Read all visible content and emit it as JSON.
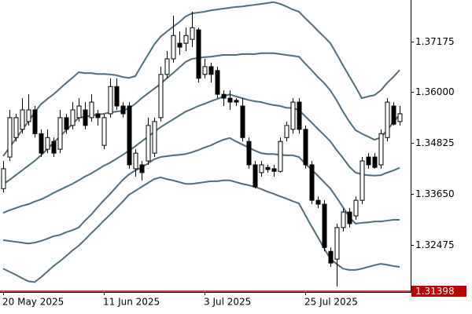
{
  "chart_data": {
    "type": "candlestick",
    "categories": [
      "20 May 2025",
      null,
      null,
      null,
      null,
      null,
      null,
      null,
      null,
      null,
      null,
      null,
      null,
      null,
      null,
      null,
      "11 Jun 2025",
      null,
      null,
      null,
      null,
      null,
      null,
      null,
      null,
      null,
      null,
      null,
      null,
      null,
      null,
      null,
      "3 Jul 2025",
      null,
      null,
      null,
      null,
      null,
      null,
      null,
      null,
      null,
      null,
      null,
      null,
      null,
      null,
      null,
      "25 Jul 2025",
      null,
      null,
      null,
      null,
      null,
      null,
      null,
      null,
      null,
      null,
      null,
      null,
      null,
      null,
      null
    ],
    "open": [
      1.3377,
      1.345,
      1.3495,
      1.3514,
      1.3532,
      1.3559,
      1.3504,
      1.3468,
      1.3486,
      1.3468,
      1.3541,
      1.3523,
      1.3541,
      1.3559,
      1.3541,
      1.355,
      1.3477,
      1.355,
      1.3613,
      1.3568,
      1.3568,
      1.3423,
      1.3432,
      1.3441,
      1.3459,
      1.3541,
      1.3641,
      1.3677,
      1.3713,
      1.3713,
      1.3722,
      1.3744,
      1.3641,
      1.3659,
      1.365,
      1.3595,
      1.3586,
      1.3581,
      1.3568,
      1.3486,
      1.3432,
      1.3414,
      1.3426,
      1.3423,
      1.3417,
      1.3495,
      1.3514,
      1.3577,
      1.3514,
      1.3432,
      1.335,
      1.3341,
      1.3232,
      1.3214,
      1.3287,
      1.3323,
      1.3314,
      1.335,
      1.345,
      1.345,
      1.3432,
      1.3495,
      1.3568,
      1.3532
    ],
    "high": [
      1.3441,
      1.3559,
      1.355,
      1.3586,
      1.3595,
      1.3568,
      1.3514,
      1.3514,
      1.3495,
      1.3559,
      1.355,
      1.3577,
      1.3586,
      1.3577,
      1.3595,
      1.3559,
      1.355,
      1.3632,
      1.3632,
      1.3577,
      1.3577,
      1.3468,
      1.3441,
      1.3541,
      1.3541,
      1.3659,
      1.3695,
      1.3777,
      1.374,
      1.3749,
      1.3786,
      1.3749,
      1.3677,
      1.3668,
      1.3659,
      1.3604,
      1.3604,
      1.3586,
      1.3586,
      1.3495,
      1.3441,
      1.3441,
      1.3432,
      1.3432,
      1.3495,
      1.3532,
      1.3586,
      1.3586,
      1.3523,
      1.3441,
      1.3359,
      1.335,
      1.3241,
      1.3296,
      1.3332,
      1.3332,
      1.3359,
      1.345,
      1.3459,
      1.3459,
      1.3514,
      1.3586,
      1.3577,
      1.3568
    ],
    "low": [
      1.3368,
      1.3441,
      1.3486,
      1.3504,
      1.3523,
      1.3495,
      1.345,
      1.3459,
      1.345,
      1.3459,
      1.3504,
      1.3514,
      1.3532,
      1.3514,
      1.3532,
      1.3523,
      1.3468,
      1.3541,
      1.3559,
      1.3541,
      1.3423,
      1.3405,
      1.3396,
      1.3432,
      1.345,
      1.3532,
      1.3632,
      1.3668,
      1.3686,
      1.3695,
      1.3704,
      1.3622,
      1.3632,
      1.3622,
      1.3586,
      1.3568,
      1.3559,
      1.3568,
      1.3486,
      1.3423,
      1.3377,
      1.3405,
      1.3414,
      1.3405,
      1.3414,
      1.3486,
      1.3504,
      1.3504,
      1.3423,
      1.3341,
      1.3332,
      1.3232,
      1.3196,
      1.3151,
      1.3278,
      1.3287,
      1.3305,
      1.3341,
      1.3423,
      1.3423,
      1.3423,
      1.3486,
      1.3523,
      1.3523
    ],
    "close": [
      1.3423,
      1.3541,
      1.3541,
      1.3559,
      1.3559,
      1.3504,
      1.3459,
      1.3495,
      1.3459,
      1.3541,
      1.3514,
      1.3559,
      1.3568,
      1.3523,
      1.3577,
      1.3541,
      1.3541,
      1.3613,
      1.3568,
      1.355,
      1.3432,
      1.3459,
      1.3414,
      1.3523,
      1.3532,
      1.3641,
      1.3677,
      1.3731,
      1.3704,
      1.3731,
      1.3749,
      1.3632,
      1.3659,
      1.3641,
      1.3595,
      1.3586,
      1.3577,
      1.3577,
      1.3495,
      1.3432,
      1.3381,
      1.3432,
      1.3421,
      1.3417,
      1.3486,
      1.3523,
      1.3577,
      1.3514,
      1.3432,
      1.335,
      1.3341,
      1.3241,
      1.3205,
      1.3287,
      1.3323,
      1.3296,
      1.335,
      1.3441,
      1.3432,
      1.3426,
      1.3504,
      1.3577,
      1.3526,
      1.355
    ],
    "up_color": "#ffffff",
    "down_color": "#000000",
    "bands": [
      {
        "color": "#4f6d7e",
        "values": [
          1.3452,
          1.3472,
          1.3492,
          1.3512,
          1.3532,
          1.3553,
          1.3572,
          1.3584,
          1.3595,
          1.3608,
          1.3621,
          1.3633,
          1.3646,
          1.3644,
          1.3644,
          1.3642,
          1.3642,
          1.3641,
          1.3639,
          1.3635,
          1.3633,
          1.3637,
          1.3662,
          1.3686,
          1.371,
          1.3728,
          1.374,
          1.3751,
          1.3762,
          1.3775,
          1.3782,
          1.3784,
          1.3786,
          1.3789,
          1.3791,
          1.3793,
          1.3795,
          1.3797,
          1.3798,
          1.38,
          1.3802,
          1.3804,
          1.3806,
          1.3808,
          1.3804,
          1.3798,
          1.3791,
          1.3786,
          1.3771,
          1.3757,
          1.3742,
          1.3728,
          1.3713,
          1.3688,
          1.3662,
          1.3637,
          1.3612,
          1.3586,
          1.359,
          1.3593,
          1.3604,
          1.3621,
          1.3635,
          1.3651
        ]
      },
      {
        "color": "#4f6d7e",
        "values": [
          1.3387,
          1.3397,
          1.3408,
          1.3419,
          1.343,
          1.3441,
          1.3454,
          1.3468,
          1.3483,
          1.3497,
          1.3512,
          1.3526,
          1.3541,
          1.3543,
          1.3546,
          1.3548,
          1.355,
          1.3553,
          1.3555,
          1.3557,
          1.3563,
          1.3573,
          1.3586,
          1.3597,
          1.3608,
          1.3619,
          1.3632,
          1.3644,
          1.3657,
          1.367,
          1.3677,
          1.3679,
          1.3681,
          1.3682,
          1.3684,
          1.3686,
          1.3686,
          1.3686,
          1.3688,
          1.3688,
          1.3688,
          1.369,
          1.369,
          1.369,
          1.3688,
          1.3686,
          1.3684,
          1.3682,
          1.3666,
          1.3651,
          1.3635,
          1.3621,
          1.3604,
          1.3581,
          1.3555,
          1.3532,
          1.3512,
          1.3504,
          1.3497,
          1.349,
          1.3495,
          1.3512,
          1.353,
          1.3548
        ]
      },
      {
        "color": "#4f6d7e",
        "values": [
          1.3321,
          1.3327,
          1.3332,
          1.3337,
          1.3341,
          1.3347,
          1.3352,
          1.3359,
          1.3367,
          1.3374,
          1.3381,
          1.3388,
          1.3396,
          1.3405,
          1.3412,
          1.3421,
          1.343,
          1.3437,
          1.3446,
          1.3455,
          1.3465,
          1.3475,
          1.3486,
          1.3497,
          1.3508,
          1.3519,
          1.3528,
          1.3537,
          1.3546,
          1.3555,
          1.3561,
          1.3568,
          1.3573,
          1.3579,
          1.3584,
          1.359,
          1.3595,
          1.359,
          1.3586,
          1.3582,
          1.3579,
          1.3577,
          1.3573,
          1.357,
          1.3568,
          1.3564,
          1.3563,
          1.3559,
          1.3544,
          1.353,
          1.3515,
          1.3501,
          1.3486,
          1.3466,
          1.3448,
          1.3428,
          1.3414,
          1.341,
          1.3408,
          1.3407,
          1.3408,
          1.3414,
          1.3419,
          1.3425
        ]
      },
      {
        "color": "#4f6d7e",
        "values": [
          1.3258,
          1.3256,
          1.3254,
          1.3252,
          1.325,
          1.3252,
          1.3256,
          1.3261,
          1.3267,
          1.327,
          1.3276,
          1.3281,
          1.3287,
          1.3303,
          1.3317,
          1.3334,
          1.335,
          1.3365,
          1.3381,
          1.3397,
          1.341,
          1.3419,
          1.3426,
          1.3435,
          1.3445,
          1.345,
          1.3452,
          1.3454,
          1.3455,
          1.3457,
          1.3461,
          1.3466,
          1.3472,
          1.3477,
          1.3484,
          1.349,
          1.3494,
          1.3486,
          1.3479,
          1.3472,
          1.3465,
          1.3459,
          1.3457,
          1.3457,
          1.3455,
          1.3454,
          1.3454,
          1.345,
          1.3435,
          1.3421,
          1.3407,
          1.3392,
          1.3377,
          1.3356,
          1.3334,
          1.3312,
          1.3296,
          1.3298,
          1.3299,
          1.3301,
          1.3301,
          1.3303,
          1.3305,
          1.3305
        ]
      },
      {
        "color": "#4f6d7e",
        "values": [
          1.3192,
          1.3185,
          1.3178,
          1.317,
          1.3163,
          1.3161,
          1.3172,
          1.3185,
          1.3198,
          1.3209,
          1.3221,
          1.3234,
          1.3245,
          1.3259,
          1.3274,
          1.3288,
          1.3303,
          1.3317,
          1.3332,
          1.3347,
          1.3363,
          1.3372,
          1.3381,
          1.339,
          1.3399,
          1.3403,
          1.3399,
          1.3396,
          1.3392,
          1.3388,
          1.3388,
          1.339,
          1.3392,
          1.3394,
          1.3394,
          1.3396,
          1.3396,
          1.3392,
          1.3388,
          1.3385,
          1.3381,
          1.3376,
          1.337,
          1.3365,
          1.3359,
          1.3354,
          1.3348,
          1.3343,
          1.3316,
          1.329,
          1.3265,
          1.3239,
          1.3214,
          1.3203,
          1.3192,
          1.3189,
          1.3189,
          1.3192,
          1.3196,
          1.32,
          1.3203,
          1.3201,
          1.3198,
          1.3196
        ]
      }
    ],
    "price_line": {
      "value": 1.31398,
      "color": "#c00000"
    },
    "ylim": [
      1.3138,
      1.3813
    ],
    "yticks": [
      {
        "value": 1.3365,
        "label": "1.33650"
      },
      1.32475,
      1.34825,
      {
        "value": 1.36,
        "label": "1.36000"
      },
      1.37175
    ]
  }
}
